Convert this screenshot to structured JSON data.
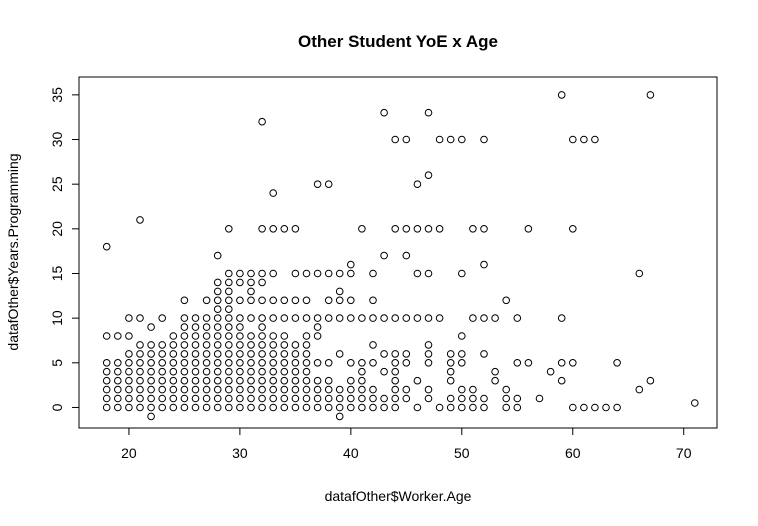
{
  "chart_data": {
    "type": "scatter",
    "title": "Other Student YoE x Age",
    "xlabel": "datafOther$Worker.Age",
    "ylabel": "datafOther$Years.Programming",
    "xlim": [
      15.5,
      73
    ],
    "ylim": [
      -2.3,
      37
    ],
    "xticks": [
      20,
      30,
      40,
      50,
      60,
      70
    ],
    "yticks": [
      0,
      5,
      10,
      15,
      20,
      25,
      30,
      35
    ],
    "grid": false,
    "marker": "open-circle",
    "point_color": "#000000",
    "points": [
      [
        18,
        0
      ],
      [
        18,
        1
      ],
      [
        18,
        2
      ],
      [
        18,
        3
      ],
      [
        18,
        4
      ],
      [
        18,
        5
      ],
      [
        18,
        8
      ],
      [
        18,
        18
      ],
      [
        19,
        0
      ],
      [
        19,
        1
      ],
      [
        19,
        2
      ],
      [
        19,
        3
      ],
      [
        19,
        4
      ],
      [
        19,
        5
      ],
      [
        19,
        8
      ],
      [
        20,
        0
      ],
      [
        20,
        1
      ],
      [
        20,
        2
      ],
      [
        20,
        3
      ],
      [
        20,
        4
      ],
      [
        20,
        5
      ],
      [
        20,
        6
      ],
      [
        20,
        8
      ],
      [
        20,
        10
      ],
      [
        21,
        0
      ],
      [
        21,
        1
      ],
      [
        21,
        2
      ],
      [
        21,
        3
      ],
      [
        21,
        4
      ],
      [
        21,
        5
      ],
      [
        21,
        6
      ],
      [
        21,
        7
      ],
      [
        21,
        10
      ],
      [
        21,
        21
      ],
      [
        22,
        -1
      ],
      [
        22,
        0
      ],
      [
        22,
        1
      ],
      [
        22,
        2
      ],
      [
        22,
        3
      ],
      [
        22,
        4
      ],
      [
        22,
        5
      ],
      [
        22,
        6
      ],
      [
        22,
        7
      ],
      [
        22,
        9
      ],
      [
        23,
        0
      ],
      [
        23,
        1
      ],
      [
        23,
        2
      ],
      [
        23,
        3
      ],
      [
        23,
        4
      ],
      [
        23,
        5
      ],
      [
        23,
        6
      ],
      [
        23,
        7
      ],
      [
        23,
        10
      ],
      [
        24,
        0
      ],
      [
        24,
        1
      ],
      [
        24,
        2
      ],
      [
        24,
        3
      ],
      [
        24,
        4
      ],
      [
        24,
        5
      ],
      [
        24,
        6
      ],
      [
        24,
        7
      ],
      [
        24,
        8
      ],
      [
        25,
        0
      ],
      [
        25,
        1
      ],
      [
        25,
        2
      ],
      [
        25,
        3
      ],
      [
        25,
        4
      ],
      [
        25,
        5
      ],
      [
        25,
        6
      ],
      [
        25,
        7
      ],
      [
        25,
        8
      ],
      [
        25,
        9
      ],
      [
        25,
        10
      ],
      [
        25,
        12
      ],
      [
        26,
        0
      ],
      [
        26,
        1
      ],
      [
        26,
        2
      ],
      [
        26,
        3
      ],
      [
        26,
        4
      ],
      [
        26,
        5
      ],
      [
        26,
        6
      ],
      [
        26,
        7
      ],
      [
        26,
        8
      ],
      [
        26,
        9
      ],
      [
        26,
        10
      ],
      [
        27,
        0
      ],
      [
        27,
        1
      ],
      [
        27,
        2
      ],
      [
        27,
        3
      ],
      [
        27,
        4
      ],
      [
        27,
        5
      ],
      [
        27,
        6
      ],
      [
        27,
        7
      ],
      [
        27,
        8
      ],
      [
        27,
        9
      ],
      [
        27,
        10
      ],
      [
        27,
        12
      ],
      [
        28,
        0
      ],
      [
        28,
        1
      ],
      [
        28,
        2
      ],
      [
        28,
        3
      ],
      [
        28,
        4
      ],
      [
        28,
        5
      ],
      [
        28,
        6
      ],
      [
        28,
        7
      ],
      [
        28,
        8
      ],
      [
        28,
        9
      ],
      [
        28,
        10
      ],
      [
        28,
        11
      ],
      [
        28,
        12
      ],
      [
        28,
        13
      ],
      [
        28,
        14
      ],
      [
        28,
        17
      ],
      [
        29,
        0
      ],
      [
        29,
        1
      ],
      [
        29,
        2
      ],
      [
        29,
        3
      ],
      [
        29,
        4
      ],
      [
        29,
        5
      ],
      [
        29,
        6
      ],
      [
        29,
        7
      ],
      [
        29,
        8
      ],
      [
        29,
        9
      ],
      [
        29,
        10
      ],
      [
        29,
        11
      ],
      [
        29,
        12
      ],
      [
        29,
        13
      ],
      [
        29,
        14
      ],
      [
        29,
        15
      ],
      [
        29,
        20
      ],
      [
        30,
        0
      ],
      [
        30,
        1
      ],
      [
        30,
        2
      ],
      [
        30,
        3
      ],
      [
        30,
        4
      ],
      [
        30,
        5
      ],
      [
        30,
        6
      ],
      [
        30,
        7
      ],
      [
        30,
        8
      ],
      [
        30,
        9
      ],
      [
        30,
        10
      ],
      [
        30,
        12
      ],
      [
        30,
        14
      ],
      [
        30,
        15
      ],
      [
        31,
        0
      ],
      [
        31,
        1
      ],
      [
        31,
        2
      ],
      [
        31,
        3
      ],
      [
        31,
        4
      ],
      [
        31,
        5
      ],
      [
        31,
        6
      ],
      [
        31,
        7
      ],
      [
        31,
        8
      ],
      [
        31,
        10
      ],
      [
        31,
        12
      ],
      [
        31,
        13
      ],
      [
        31,
        14
      ],
      [
        31,
        15
      ],
      [
        32,
        0
      ],
      [
        32,
        1
      ],
      [
        32,
        2
      ],
      [
        32,
        3
      ],
      [
        32,
        4
      ],
      [
        32,
        5
      ],
      [
        32,
        6
      ],
      [
        32,
        7
      ],
      [
        32,
        8
      ],
      [
        32,
        9
      ],
      [
        32,
        10
      ],
      [
        32,
        12
      ],
      [
        32,
        14
      ],
      [
        32,
        15
      ],
      [
        32,
        20
      ],
      [
        32,
        32
      ],
      [
        33,
        0
      ],
      [
        33,
        1
      ],
      [
        33,
        2
      ],
      [
        33,
        3
      ],
      [
        33,
        4
      ],
      [
        33,
        5
      ],
      [
        33,
        6
      ],
      [
        33,
        7
      ],
      [
        33,
        8
      ],
      [
        33,
        10
      ],
      [
        33,
        12
      ],
      [
        33,
        15
      ],
      [
        33,
        20
      ],
      [
        33,
        24
      ],
      [
        34,
        0
      ],
      [
        34,
        1
      ],
      [
        34,
        2
      ],
      [
        34,
        3
      ],
      [
        34,
        4
      ],
      [
        34,
        5
      ],
      [
        34,
        6
      ],
      [
        34,
        7
      ],
      [
        34,
        8
      ],
      [
        34,
        10
      ],
      [
        34,
        12
      ],
      [
        34,
        20
      ],
      [
        35,
        0
      ],
      [
        35,
        1
      ],
      [
        35,
        2
      ],
      [
        35,
        3
      ],
      [
        35,
        4
      ],
      [
        35,
        5
      ],
      [
        35,
        6
      ],
      [
        35,
        7
      ],
      [
        35,
        10
      ],
      [
        35,
        12
      ],
      [
        35,
        15
      ],
      [
        35,
        20
      ],
      [
        36,
        0
      ],
      [
        36,
        1
      ],
      [
        36,
        2
      ],
      [
        36,
        3
      ],
      [
        36,
        4
      ],
      [
        36,
        5
      ],
      [
        36,
        6
      ],
      [
        36,
        7
      ],
      [
        36,
        8
      ],
      [
        36,
        10
      ],
      [
        36,
        12
      ],
      [
        36,
        15
      ],
      [
        37,
        0
      ],
      [
        37,
        1
      ],
      [
        37,
        2
      ],
      [
        37,
        3
      ],
      [
        37,
        5
      ],
      [
        37,
        8
      ],
      [
        37,
        9
      ],
      [
        37,
        10
      ],
      [
        37,
        15
      ],
      [
        37,
        25
      ],
      [
        38,
        0
      ],
      [
        38,
        1
      ],
      [
        38,
        2
      ],
      [
        38,
        3
      ],
      [
        38,
        5
      ],
      [
        38,
        10
      ],
      [
        38,
        12
      ],
      [
        38,
        15
      ],
      [
        38,
        25
      ],
      [
        39,
        -1
      ],
      [
        39,
        0
      ],
      [
        39,
        1
      ],
      [
        39,
        2
      ],
      [
        39,
        6
      ],
      [
        39,
        10
      ],
      [
        39,
        12
      ],
      [
        39,
        13
      ],
      [
        39,
        15
      ],
      [
        40,
        0
      ],
      [
        40,
        1
      ],
      [
        40,
        2
      ],
      [
        40,
        3
      ],
      [
        40,
        5
      ],
      [
        40,
        10
      ],
      [
        40,
        12
      ],
      [
        40,
        15
      ],
      [
        40,
        16
      ],
      [
        41,
        0
      ],
      [
        41,
        1
      ],
      [
        41,
        2
      ],
      [
        41,
        3
      ],
      [
        41,
        4
      ],
      [
        41,
        5
      ],
      [
        41,
        10
      ],
      [
        41,
        20
      ],
      [
        42,
        0
      ],
      [
        42,
        1
      ],
      [
        42,
        2
      ],
      [
        42,
        5
      ],
      [
        42,
        7
      ],
      [
        42,
        10
      ],
      [
        42,
        12
      ],
      [
        42,
        15
      ],
      [
        43,
        0
      ],
      [
        43,
        1
      ],
      [
        43,
        4
      ],
      [
        43,
        6
      ],
      [
        43,
        10
      ],
      [
        43,
        17
      ],
      [
        43,
        33
      ],
      [
        44,
        0
      ],
      [
        44,
        1
      ],
      [
        44,
        2
      ],
      [
        44,
        3
      ],
      [
        44,
        4
      ],
      [
        44,
        5
      ],
      [
        44,
        6
      ],
      [
        44,
        10
      ],
      [
        44,
        20
      ],
      [
        44,
        30
      ],
      [
        45,
        1
      ],
      [
        45,
        2
      ],
      [
        45,
        5
      ],
      [
        45,
        6
      ],
      [
        45,
        10
      ],
      [
        45,
        17
      ],
      [
        45,
        20
      ],
      [
        45,
        30
      ],
      [
        46,
        0
      ],
      [
        46,
        3
      ],
      [
        46,
        10
      ],
      [
        46,
        15
      ],
      [
        46,
        20
      ],
      [
        46,
        25
      ],
      [
        47,
        1
      ],
      [
        47,
        2
      ],
      [
        47,
        5
      ],
      [
        47,
        6
      ],
      [
        47,
        7
      ],
      [
        47,
        10
      ],
      [
        47,
        15
      ],
      [
        47,
        20
      ],
      [
        47,
        26
      ],
      [
        47,
        33
      ],
      [
        48,
        0
      ],
      [
        48,
        10
      ],
      [
        48,
        20
      ],
      [
        48,
        30
      ],
      [
        49,
        0
      ],
      [
        49,
        1
      ],
      [
        49,
        3
      ],
      [
        49,
        4
      ],
      [
        49,
        5
      ],
      [
        49,
        6
      ],
      [
        49,
        30
      ],
      [
        50,
        0
      ],
      [
        50,
        1
      ],
      [
        50,
        2
      ],
      [
        50,
        5
      ],
      [
        50,
        6
      ],
      [
        50,
        8
      ],
      [
        50,
        15
      ],
      [
        50,
        30
      ],
      [
        51,
        0
      ],
      [
        51,
        1
      ],
      [
        51,
        2
      ],
      [
        51,
        10
      ],
      [
        51,
        20
      ],
      [
        52,
        0
      ],
      [
        52,
        1
      ],
      [
        52,
        6
      ],
      [
        52,
        10
      ],
      [
        52,
        16
      ],
      [
        52,
        20
      ],
      [
        52,
        30
      ],
      [
        53,
        3
      ],
      [
        53,
        4
      ],
      [
        53,
        10
      ],
      [
        54,
        0
      ],
      [
        54,
        1
      ],
      [
        54,
        2
      ],
      [
        54,
        12
      ],
      [
        55,
        0
      ],
      [
        55,
        1
      ],
      [
        55,
        5
      ],
      [
        55,
        10
      ],
      [
        56,
        5
      ],
      [
        56,
        20
      ],
      [
        57,
        1
      ],
      [
        58,
        4
      ],
      [
        59,
        3
      ],
      [
        59,
        5
      ],
      [
        59,
        10
      ],
      [
        59,
        35
      ],
      [
        60,
        0
      ],
      [
        60,
        5
      ],
      [
        60,
        20
      ],
      [
        60,
        30
      ],
      [
        61,
        0
      ],
      [
        61,
        30
      ],
      [
        62,
        0
      ],
      [
        62,
        30
      ],
      [
        63,
        0
      ],
      [
        64,
        0
      ],
      [
        64,
        5
      ],
      [
        66,
        2
      ],
      [
        66,
        15
      ],
      [
        67,
        3
      ],
      [
        67,
        35
      ],
      [
        71,
        0.5
      ]
    ]
  }
}
